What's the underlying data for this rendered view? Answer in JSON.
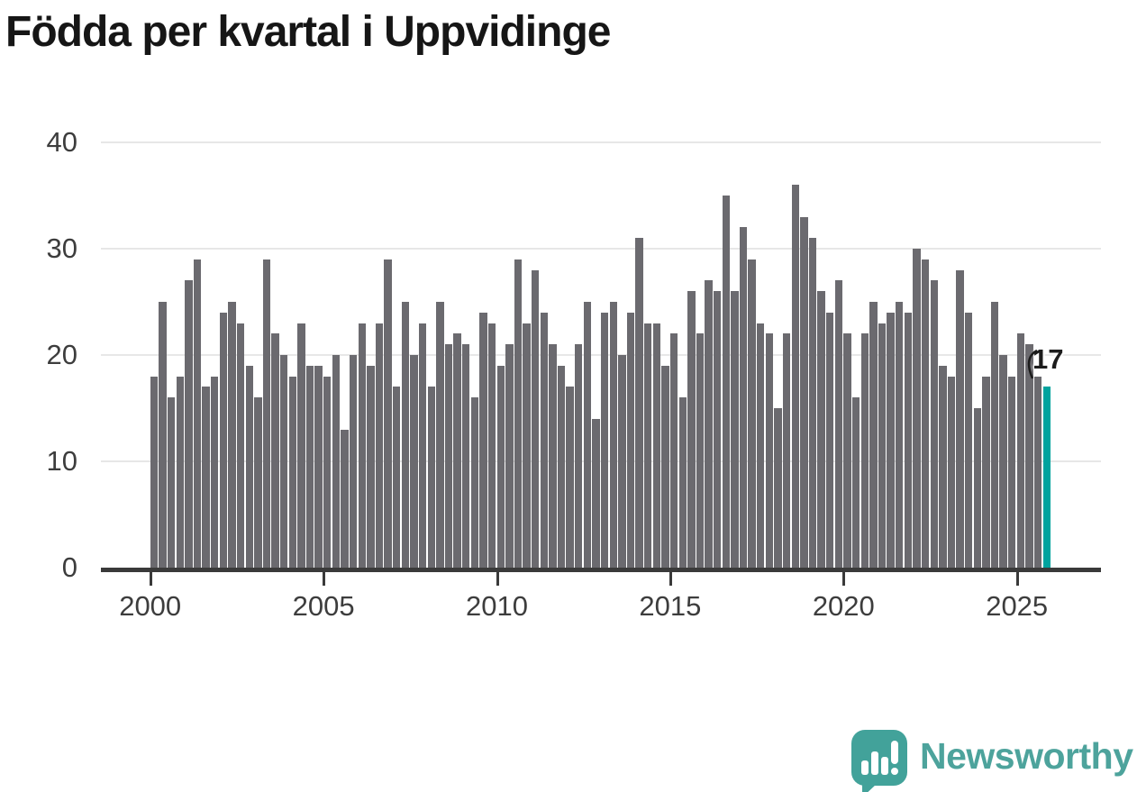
{
  "title": "Födda per kvartal i Uppvidinge",
  "chart_data": {
    "type": "bar",
    "title": "Födda per kvartal i Uppvidinge",
    "xlabel": "",
    "ylabel": "",
    "ylim": [
      0,
      40
    ],
    "y_ticks": [
      0,
      10,
      20,
      30,
      40
    ],
    "x_tick_labels": [
      "2000",
      "2005",
      "2010",
      "2015",
      "2020",
      "2025"
    ],
    "grid": "horizontal",
    "bar_color": "#6b6a6f",
    "frequency": "quarterly",
    "years": [
      {
        "year": 2000,
        "values": [
          18,
          25,
          16,
          18
        ]
      },
      {
        "year": 2001,
        "values": [
          27,
          29,
          17,
          18
        ]
      },
      {
        "year": 2002,
        "values": [
          24,
          25,
          23,
          19
        ]
      },
      {
        "year": 2003,
        "values": [
          16,
          29,
          22,
          20
        ]
      },
      {
        "year": 2004,
        "values": [
          18,
          23,
          19,
          19
        ]
      },
      {
        "year": 2005,
        "values": [
          18,
          20,
          13,
          20
        ]
      },
      {
        "year": 2006,
        "values": [
          23,
          19,
          23,
          29
        ]
      },
      {
        "year": 2007,
        "values": [
          17,
          25,
          20,
          23
        ]
      },
      {
        "year": 2008,
        "values": [
          17,
          25,
          21,
          22
        ]
      },
      {
        "year": 2009,
        "values": [
          21,
          16,
          24,
          23
        ]
      },
      {
        "year": 2010,
        "values": [
          19,
          21,
          29,
          23
        ]
      },
      {
        "year": 2011,
        "values": [
          28,
          24,
          21,
          19
        ]
      },
      {
        "year": 2012,
        "values": [
          17,
          21,
          25,
          14
        ]
      },
      {
        "year": 2013,
        "values": [
          24,
          25,
          20,
          24
        ]
      },
      {
        "year": 2014,
        "values": [
          31,
          23,
          23,
          19
        ]
      },
      {
        "year": 2015,
        "values": [
          22,
          16,
          26,
          22
        ]
      },
      {
        "year": 2016,
        "values": [
          27,
          26,
          35,
          26
        ]
      },
      {
        "year": 2017,
        "values": [
          32,
          29,
          23,
          22
        ]
      },
      {
        "year": 2018,
        "values": [
          15,
          22,
          36,
          33
        ]
      },
      {
        "year": 2019,
        "values": [
          31,
          26,
          24,
          27
        ]
      },
      {
        "year": 2020,
        "values": [
          22,
          16,
          22,
          25
        ]
      },
      {
        "year": 2021,
        "values": [
          23,
          24,
          25,
          24
        ]
      },
      {
        "year": 2022,
        "values": [
          30,
          29,
          27,
          19
        ]
      },
      {
        "year": 2023,
        "values": [
          18,
          28,
          24,
          15
        ]
      },
      {
        "year": 2024,
        "values": [
          18,
          25,
          20,
          18
        ]
      },
      {
        "year": 2025,
        "values": [
          22,
          21,
          18,
          17
        ]
      }
    ],
    "highlight": {
      "position": "last",
      "quarter": "2025 Q4",
      "value": 17,
      "label": "17",
      "color": "#00a39e"
    }
  },
  "footer": {
    "brand": "Newsworthy",
    "brand_color": "#4da39c",
    "logo_icon": "newsworthy-speech-bubble-bar-chart-icon"
  }
}
